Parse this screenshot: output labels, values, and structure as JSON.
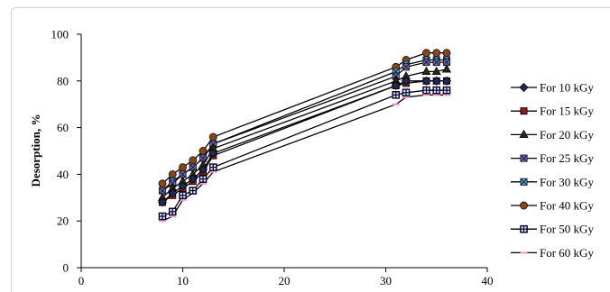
{
  "chart_data": {
    "type": "line",
    "x": [
      8,
      9,
      10,
      11,
      12,
      13,
      31,
      32,
      34,
      35,
      36
    ],
    "series": [
      {
        "name": "For 10 kGy",
        "marker": "diamond",
        "color": "#1f2a5c",
        "values": [
          28,
          32,
          35,
          38,
          42,
          49,
          78,
          80,
          80,
          80,
          80
        ]
      },
      {
        "name": "For 15 kGy",
        "marker": "square",
        "color": "#8b1a1a",
        "values": [
          28,
          31,
          34,
          37,
          41,
          48,
          78,
          79,
          80,
          80,
          80
        ]
      },
      {
        "name": "For 20 kGy",
        "marker": "triangle",
        "color": "#2b2b14",
        "values": [
          30,
          34,
          37,
          40,
          44,
          51,
          80,
          82,
          84,
          84,
          85
        ]
      },
      {
        "name": "For 25 kGy",
        "marker": "square-x",
        "color": "#6f72a8",
        "values": [
          33,
          36,
          40,
          43,
          47,
          53,
          82,
          86,
          88,
          88,
          88
        ]
      },
      {
        "name": "For 30 kGy",
        "marker": "square-x",
        "color": "#4bacc6",
        "values": [
          33,
          37,
          40,
          43,
          47,
          53,
          84,
          87,
          89,
          89,
          89
        ]
      },
      {
        "name": "For 40 kGy",
        "marker": "circle",
        "color": "#8b4513",
        "values": [
          36,
          40,
          43,
          46,
          50,
          56,
          86,
          89,
          92,
          92,
          92
        ]
      },
      {
        "name": "For 50 kGy",
        "marker": "square-plus",
        "color": "#dfe6f3",
        "values": [
          22,
          24,
          31,
          33,
          38,
          43,
          74,
          75,
          76,
          76,
          76
        ]
      },
      {
        "name": "For 60 kGy",
        "marker": "dash",
        "color": "#ff99cc",
        "values": [
          20,
          22,
          29,
          32,
          36,
          41,
          70,
          73,
          74,
          74,
          74
        ]
      }
    ],
    "ylabel": "Desorption, %",
    "xlim": [
      0,
      40
    ],
    "ylim": [
      0,
      100
    ],
    "xticks": [
      0,
      10,
      20,
      30,
      40
    ],
    "yticks": [
      0,
      20,
      40,
      60,
      80,
      100
    ],
    "grid": false,
    "legend": "right",
    "line_color": "#000000"
  }
}
